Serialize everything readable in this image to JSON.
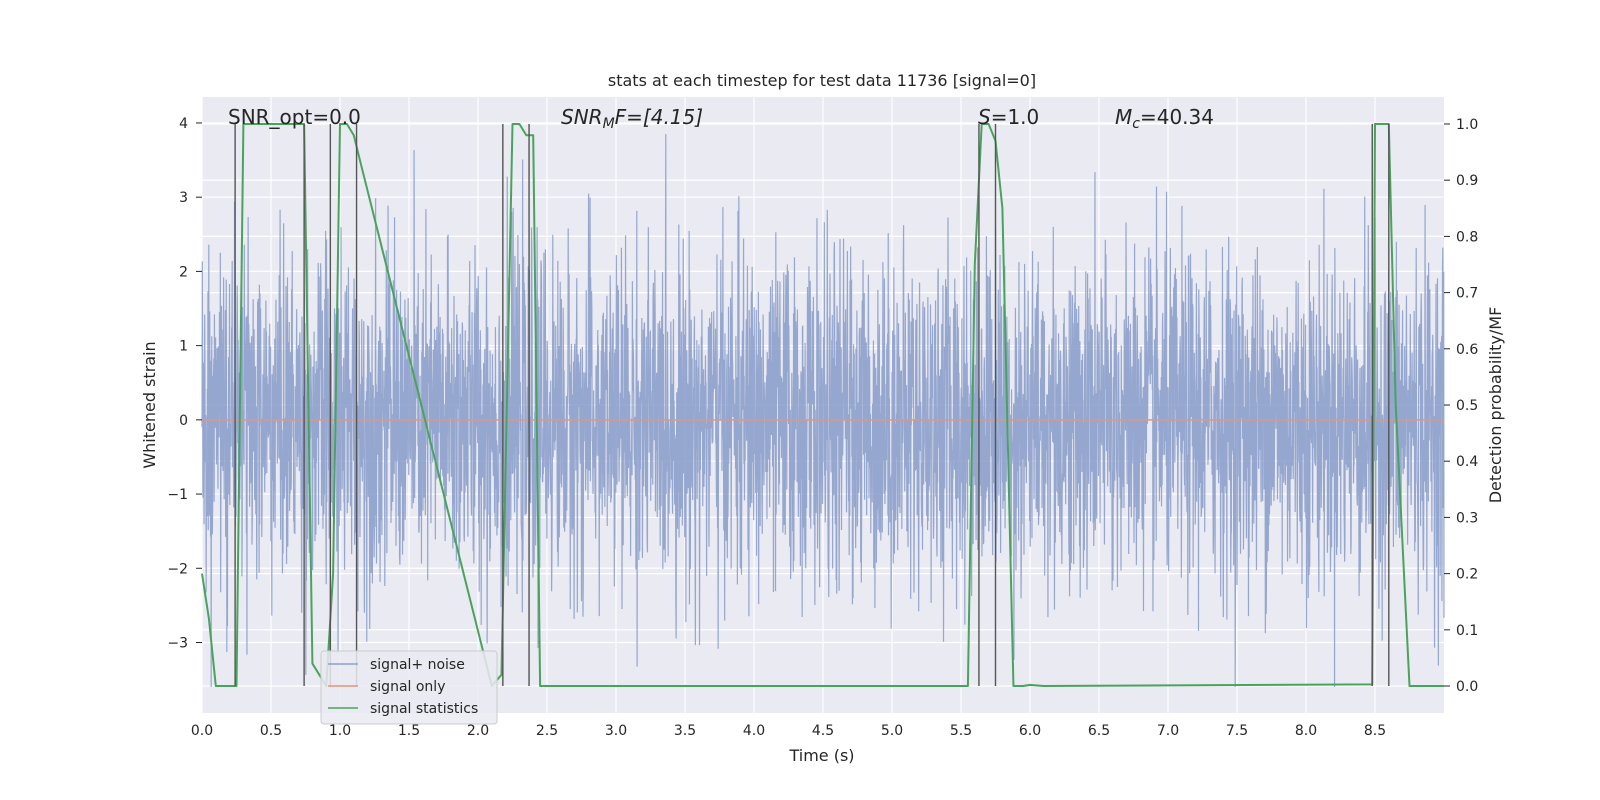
{
  "chart_data": {
    "type": "line",
    "title": "stats at each timestep for test data 11736 [signal=0]",
    "xlabel": "Time (s)",
    "ylabel": "Whitened strain",
    "y2label": "Detection probability/MF",
    "xlim": [
      0,
      9.0
    ],
    "ylim": [
      -3.95,
      4.35
    ],
    "y2lim": [
      -0.048,
      1.048
    ],
    "x_ticks": [
      0.0,
      0.5,
      1.0,
      1.5,
      2.0,
      2.5,
      3.0,
      3.5,
      4.0,
      4.5,
      5.0,
      5.5,
      6.0,
      6.5,
      7.0,
      7.5,
      8.0,
      8.5
    ],
    "x_tick_labels": [
      "0.0",
      "0.5",
      "1.0",
      "1.5",
      "2.0",
      "2.5",
      "3.0",
      "3.5",
      "4.0",
      "4.5",
      "5.0",
      "5.5",
      "6.0",
      "6.5",
      "7.0",
      "7.5",
      "8.0",
      "8.5"
    ],
    "y_ticks": [
      -3,
      -2,
      -1,
      0,
      1,
      2,
      3,
      4
    ],
    "y_tick_labels": [
      "−3",
      "−2",
      "−1",
      "0",
      "1",
      "2",
      "3",
      "4"
    ],
    "y2_ticks": [
      0.0,
      0.1,
      0.2,
      0.3,
      0.4,
      0.5,
      0.6,
      0.7,
      0.8,
      0.9,
      1.0
    ],
    "y2_tick_labels": [
      "0.0",
      "0.1",
      "0.2",
      "0.3",
      "0.4",
      "0.5",
      "0.6",
      "0.7",
      "0.8",
      "0.9",
      "1.0"
    ],
    "annotations": {
      "snr_opt": "SNR_opt=0.0",
      "snr_mf_sym": "SNR",
      "snr_mf_sub": "M",
      "snr_mf_rest": "F=[4.15]",
      "s_sym": "S",
      "s_rest": "=1.0",
      "mc_sym": "M",
      "mc_sub": "c",
      "mc_rest": "=40.34"
    },
    "series": [
      {
        "name": "signal+ noise",
        "color": "#8da0cb",
        "description": "dense whitened noise, roughly gaussian with std ~1.1, peaks near ±3.8",
        "amplitude_std": 1.1,
        "x_range": [
          0,
          9.0
        ]
      },
      {
        "name": "signal only",
        "color": "#e8937a",
        "x": [
          0,
          9.0
        ],
        "y": [
          0,
          0
        ]
      },
      {
        "name": "signal statistics",
        "color": "#4aa35d",
        "axis": "right",
        "x": [
          0.0,
          0.05,
          0.1,
          0.25,
          0.3,
          0.5,
          0.74,
          0.8,
          0.9,
          0.95,
          1.0,
          1.05,
          1.1,
          1.13,
          1.15,
          2.1,
          2.17,
          2.25,
          2.3,
          2.35,
          2.4,
          2.45,
          5.55,
          5.6,
          5.65,
          5.7,
          5.75,
          5.8,
          5.88,
          5.95,
          6.0,
          6.1,
          8.48,
          8.5,
          8.55,
          8.6,
          8.65,
          8.75,
          9.0
        ],
        "y": [
          0.2,
          0.12,
          0.0,
          0.0,
          1.0,
          1.0,
          1.0,
          0.04,
          0.0,
          0.2,
          1.0,
          1.0,
          0.98,
          0.95,
          0.93,
          0.0,
          0.02,
          1.0,
          1.0,
          0.98,
          0.98,
          0.0,
          0.0,
          0.75,
          1.0,
          1.0,
          0.97,
          0.85,
          0.0,
          0.0,
          0.002,
          0.0,
          0.003,
          1.0,
          1.0,
          1.0,
          0.5,
          0.0,
          0.0
        ]
      }
    ],
    "vertical_lines": [
      0.24,
      0.74,
      0.93,
      1.12,
      2.18,
      2.37,
      5.63,
      5.75,
      8.48,
      8.6
    ],
    "legend": {
      "location": "lower-left",
      "entries": [
        "signal+ noise",
        "signal only",
        "signal statistics"
      ]
    },
    "colors": {
      "background": "#eaeaf2",
      "grid": "#ffffff",
      "vline": "#555555"
    }
  }
}
